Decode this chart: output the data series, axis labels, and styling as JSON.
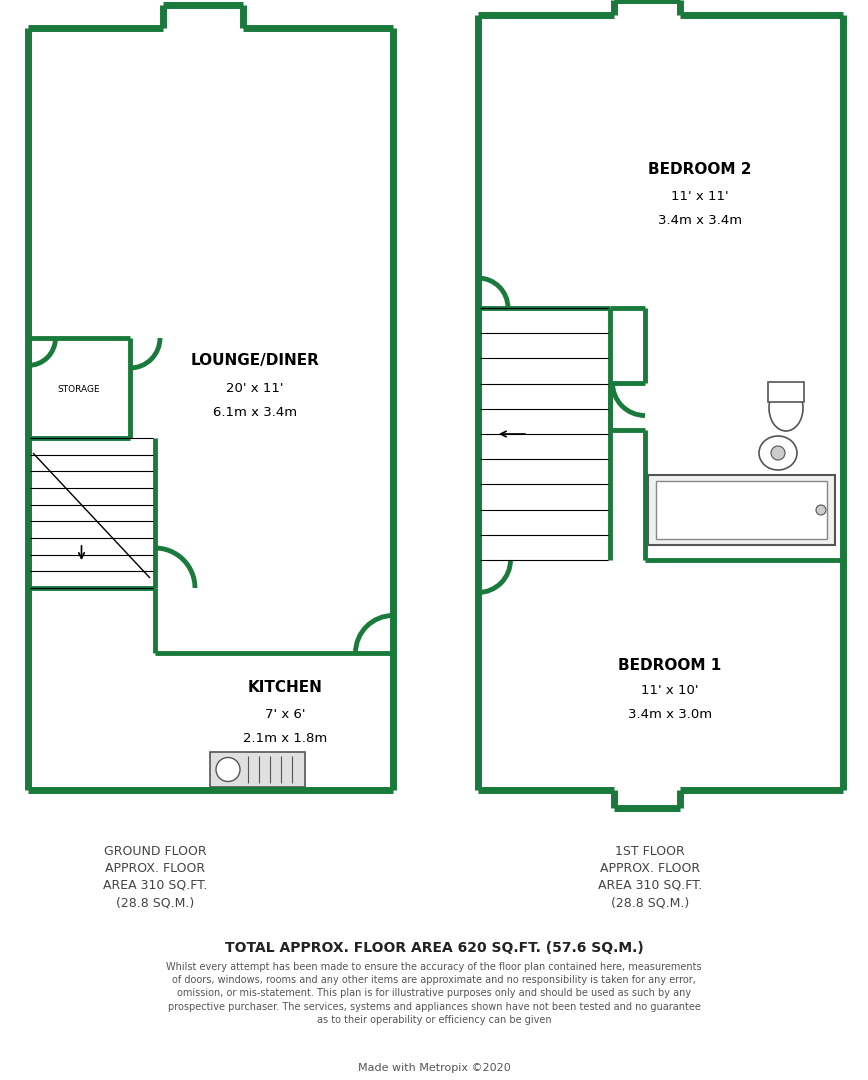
{
  "bg_color": "#ffffff",
  "wall_color": "#1a7a3c",
  "wall_lw": 5.0,
  "inner_wall_lw": 3.5,
  "text_color": "#000000",
  "ground_floor_label": "GROUND FLOOR\nAPPROX. FLOOR\nAREA 310 SQ.FT.\n(28.8 SQ.M.)",
  "first_floor_label": "1ST FLOOR\nAPPROX. FLOOR\nAREA 310 SQ.FT.\n(28.8 SQ.M.)",
  "total_area_label": "TOTAL APPROX. FLOOR AREA 620 SQ.FT. (57.6 SQ.M.)",
  "disclaimer": "Whilst every attempt has been made to ensure the accuracy of the floor plan contained here, measurements\nof doors, windows, rooms and any other items are approximate and no responsibility is taken for any error,\nomission, or mis-statement. This plan is for illustrative purposes only and should be used as such by any\nprospective purchaser. The services, systems and appliances shown have not been tested and no guarantee\nas to their operability or efficiency can be given",
  "metropix": "Made with Metropix ©2020"
}
